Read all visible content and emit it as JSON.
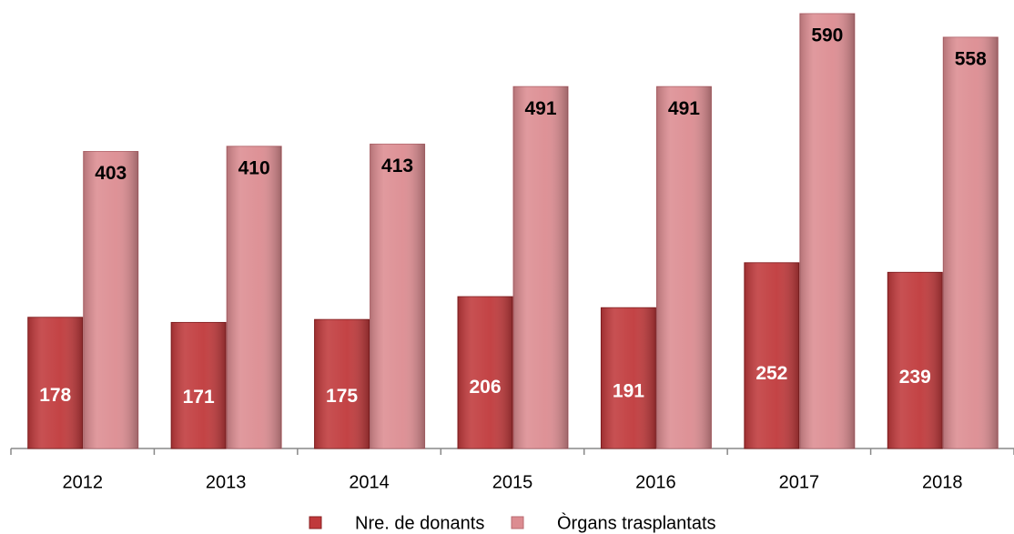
{
  "chart_data": {
    "type": "bar",
    "categories": [
      "2012",
      "2013",
      "2014",
      "2015",
      "2016",
      "2017",
      "2018"
    ],
    "series": [
      {
        "name": "Nre. de donants",
        "color": "#c0393b",
        "values": [
          178,
          171,
          175,
          206,
          191,
          252,
          239
        ]
      },
      {
        "name": "Òrgans trasplantats",
        "color": "#dc8c91",
        "values": [
          403,
          410,
          413,
          491,
          491,
          590,
          558
        ]
      }
    ],
    "legend": "bottom"
  }
}
